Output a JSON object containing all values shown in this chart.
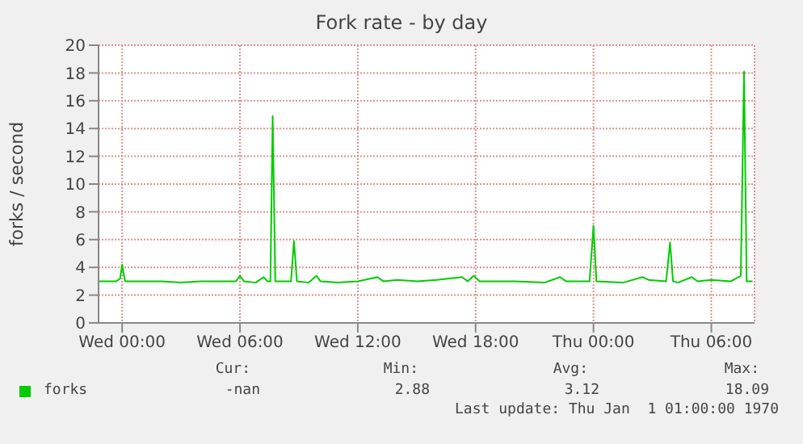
{
  "chart_data": {
    "type": "line",
    "title": "Fork rate - by day",
    "ylabel": "forks / second",
    "x": [
      "1969-12-30T22:48",
      "1969-12-30T23:42",
      "1969-12-30T23:54",
      "1969-12-31T00:00",
      "1969-12-31T00:09",
      "1969-12-31T02:00",
      "1969-12-31T03:00",
      "1969-12-31T04:00",
      "1969-12-31T05:00",
      "1969-12-31T05:48",
      "1969-12-31T06:00",
      "1969-12-31T06:12",
      "1969-12-31T06:48",
      "1969-12-31T07:12",
      "1969-12-31T07:24",
      "1969-12-31T07:33",
      "1969-12-31T07:40",
      "1969-12-31T07:48",
      "1969-12-31T08:36",
      "1969-12-31T08:45",
      "1969-12-31T08:54",
      "1969-12-31T09:30",
      "1969-12-31T09:54",
      "1969-12-31T10:06",
      "1969-12-31T11:00",
      "1969-12-31T12:00",
      "1969-12-31T13:00",
      "1969-12-31T13:18",
      "1969-12-31T14:00",
      "1969-12-31T15:00",
      "1969-12-31T16:00",
      "1969-12-31T17:18",
      "1969-12-31T17:36",
      "1969-12-31T17:54",
      "1969-12-31T18:12",
      "1969-12-31T20:00",
      "1969-12-31T21:30",
      "1969-12-31T22:18",
      "1969-12-31T22:36",
      "1969-12-31T23:48",
      "1970-01-01T00:00",
      "1970-01-01T00:09",
      "1970-01-01T01:30",
      "1970-01-01T02:30",
      "1970-01-01T02:48",
      "1970-01-01T03:42",
      "1970-01-01T03:54",
      "1970-01-01T04:03",
      "1970-01-01T04:18",
      "1970-01-01T05:00",
      "1970-01-01T05:18",
      "1970-01-01T06:00",
      "1970-01-01T07:00",
      "1970-01-01T07:30",
      "1970-01-01T07:40",
      "1970-01-01T07:48",
      "1970-01-01T08:06"
    ],
    "series": [
      {
        "name": "forks",
        "color": "#00cc00",
        "values": [
          3.0,
          3.0,
          3.2,
          4.2,
          3.0,
          3.0,
          2.9,
          3.0,
          3.0,
          3.0,
          3.4,
          3.0,
          2.9,
          3.3,
          3.0,
          3.0,
          14.9,
          3.0,
          3.0,
          5.9,
          3.0,
          2.9,
          3.4,
          3.0,
          2.9,
          3.0,
          3.3,
          3.0,
          3.1,
          3.0,
          3.1,
          3.3,
          3.0,
          3.4,
          3.0,
          3.0,
          2.9,
          3.3,
          3.0,
          3.0,
          7.0,
          3.0,
          2.9,
          3.3,
          3.1,
          3.0,
          5.8,
          3.0,
          2.9,
          3.3,
          3.0,
          3.1,
          3.0,
          3.4,
          18.1,
          3.0,
          3.0
        ]
      }
    ],
    "xlim": [
      "1969-12-30T22:48",
      "1970-01-01T08:12"
    ],
    "xticks": [
      {
        "value": "1969-12-31T00:00",
        "label": "Wed 00:00"
      },
      {
        "value": "1969-12-31T06:00",
        "label": "Wed 06:00"
      },
      {
        "value": "1969-12-31T12:00",
        "label": "Wed 12:00"
      },
      {
        "value": "1969-12-31T18:00",
        "label": "Wed 18:00"
      },
      {
        "value": "1970-01-01T00:00",
        "label": "Thu 00:00"
      },
      {
        "value": "1970-01-01T06:00",
        "label": "Thu 06:00"
      }
    ],
    "ylim": [
      0,
      20
    ],
    "yticks": [
      0,
      2,
      4,
      6,
      8,
      10,
      12,
      14,
      16,
      18,
      20
    ],
    "grid": true,
    "legend": "bottom left",
    "marker": "none",
    "line_style": "solid",
    "annotations": [
      "Cur:",
      "Min:",
      "Avg:",
      "Max:",
      "-nan",
      "2.88",
      "3.12",
      "18.09",
      "Last update: Thu Jan  1 01:00:00 1970"
    ]
  }
}
